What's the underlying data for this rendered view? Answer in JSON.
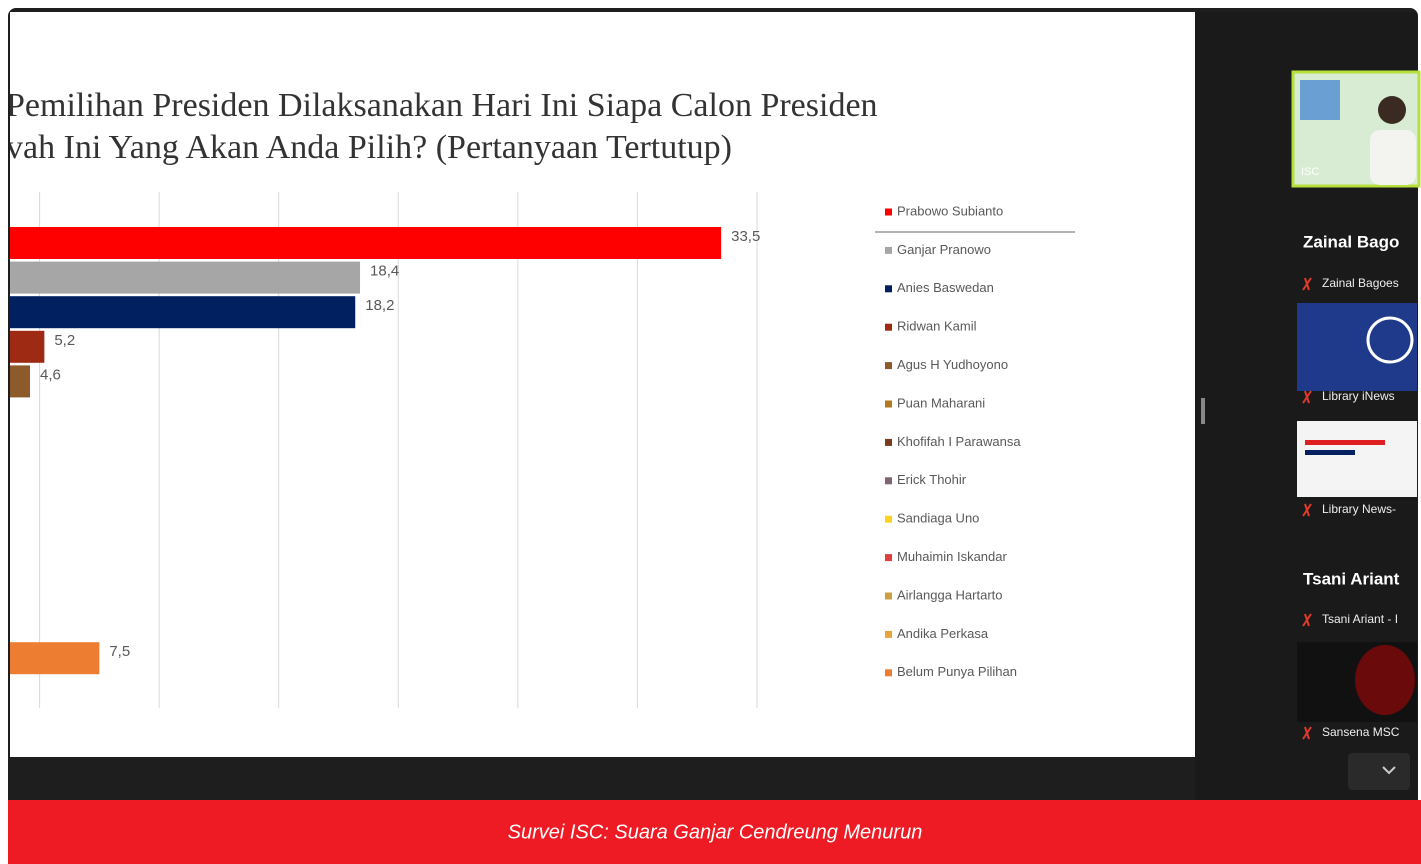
{
  "chart_data": {
    "type": "hbar",
    "title": [
      "Pemilihan Presiden Dilaksanakan Hari Ini Siapa Calon Presiden",
      "vah Ini Yang Akan Anda Pilih? (Pertanyaan Tertutup)"
    ],
    "series": [
      {
        "name": "Prabowo Subianto",
        "color": "#ff0000"
      },
      {
        "name": "Ganjar Pranowo",
        "color": "#a6a6a6"
      },
      {
        "name": "Anies Baswedan",
        "color": "#002060"
      },
      {
        "name": "Ridwan Kamil",
        "color": "#9e2a14"
      },
      {
        "name": "Agus H Yudhoyono",
        "color": "#8c5a2b"
      },
      {
        "name": "Puan Maharani",
        "color": "#b07a1e"
      },
      {
        "name": "Khofifah I Parawansa",
        "color": "#7a3a1c"
      },
      {
        "name": "Erick Thohir",
        "color": "#7f6474"
      },
      {
        "name": "Sandiaga Uno",
        "color": "#ffd21f"
      },
      {
        "name": "Muhaimin Iskandar",
        "color": "#e0403c"
      },
      {
        "name": "Airlangga Hartarto",
        "color": "#c9a042"
      },
      {
        "name": "Andika Perkasa",
        "color": "#e8a33a"
      },
      {
        "name": "Belum Punya Pilihan",
        "color": "#ed7d31"
      }
    ],
    "values": [
      33.5,
      18.4,
      18.2,
      5.2,
      4.6,
      null,
      null,
      null,
      null,
      null,
      null,
      null,
      7.5
    ],
    "value_labels": [
      "33,5",
      "18,4",
      "18,2",
      "5,2",
      "4,6",
      null,
      null,
      null,
      null,
      null,
      null,
      null,
      "7,5"
    ],
    "xlim": [
      0,
      35
    ],
    "xticks": [
      0,
      5,
      10,
      15,
      20,
      25,
      30,
      35
    ],
    "grid": true
  },
  "sidebar": {
    "video_label": "ISC",
    "participants": [
      {
        "heading": "Zainal Bago",
        "label": "Zainal Bagoes"
      },
      {
        "label": "Library iNews"
      },
      {
        "label": "Library News-"
      },
      {
        "heading": "Tsani Ariant",
        "label": "Tsani Ariant - I"
      },
      {
        "label": "Sansena MSC"
      }
    ]
  },
  "caption": "Survei ISC: Suara Ganjar Cendreung Menurun"
}
